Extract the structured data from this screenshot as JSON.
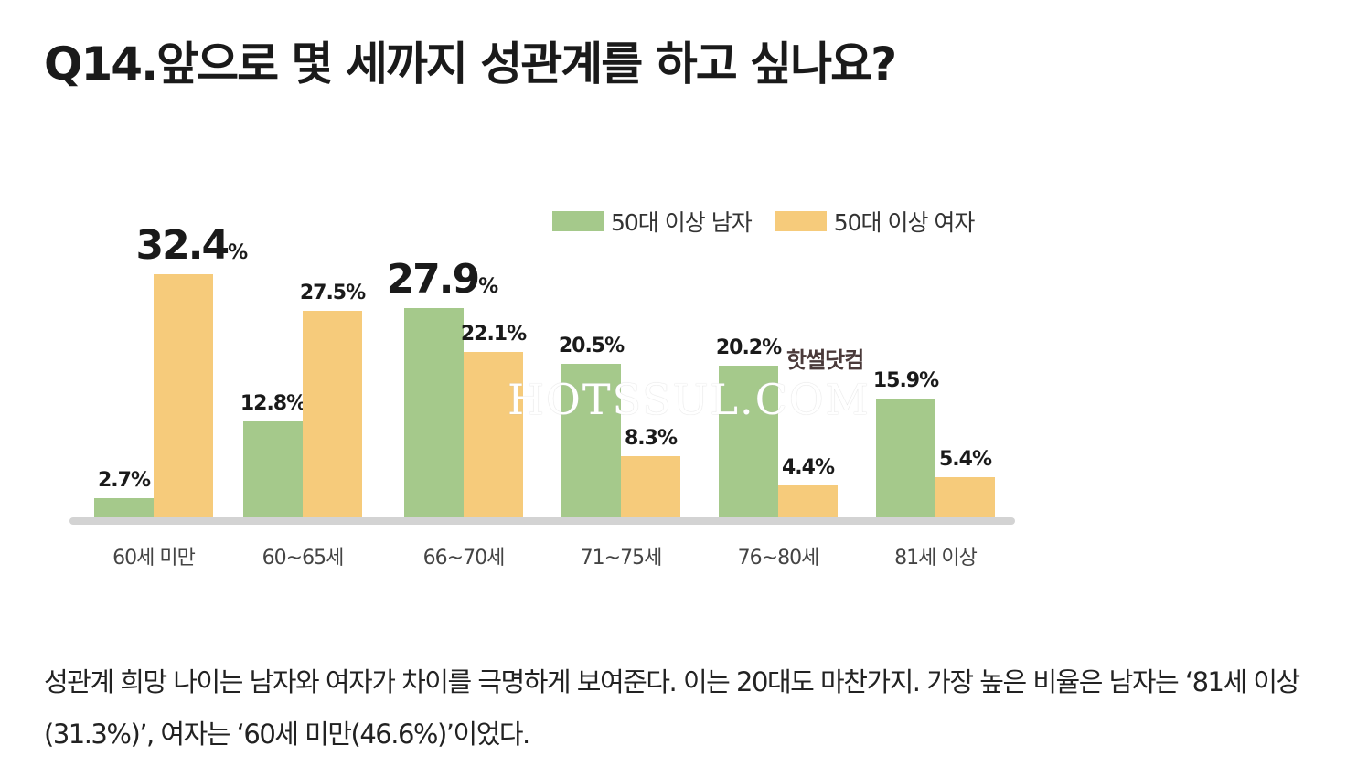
{
  "title": "Q14.앞으로 몇 세까지 성관계를 하고 싶나요?",
  "chart_data": {
    "type": "bar",
    "title": "",
    "categories": [
      "60세 미만",
      "60~65세",
      "66~70세",
      "71~75세",
      "76~80세",
      "81세 이상"
    ],
    "series": [
      {
        "name": "50대 이상 남자",
        "color": "#a5c98b",
        "values": [
          2.7,
          12.8,
          27.9,
          20.5,
          20.2,
          15.9
        ]
      },
      {
        "name": "50대 이상 여자",
        "color": "#f6cb7b",
        "values": [
          32.4,
          27.5,
          22.1,
          8.3,
          4.4,
          5.4
        ]
      }
    ],
    "unit": "%",
    "legend_position": "top-right",
    "ylim": [
      0,
      35
    ],
    "grid": false
  },
  "watermark": {
    "text": "HOTSSUL.COM",
    "label": "핫썰닷컴"
  },
  "body_text": "성관계 희망 나이는 남자와 여자가 차이를 극명하게 보여준다. 이는 20대도 마찬가지. 가장 높은 비율은 남자는 ‘81세 이상(31.3%)’, 여자는 ‘60세 미만(46.6%)’이었다."
}
